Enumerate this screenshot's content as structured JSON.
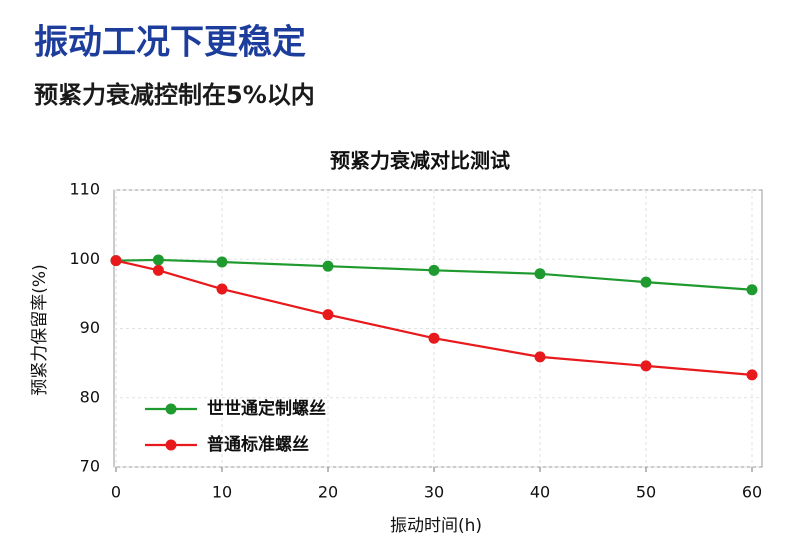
{
  "header": {
    "title": "振动工况下更稳定",
    "subtitle": "预紧力衰减控制在5%以内"
  },
  "chart_data": {
    "type": "line",
    "title": "预紧力衰减对比测试",
    "x_label": "振动时间(h)",
    "y_label": "预紧力保留率(%)",
    "x": [
      0,
      4,
      10,
      20,
      30,
      40,
      50,
      60
    ],
    "series": [
      {
        "name": "世世通定制螺丝",
        "color": "#1e9a2e",
        "values": [
          99.8,
          99.9,
          99.6,
          99.0,
          98.4,
          97.9,
          96.7,
          95.6
        ]
      },
      {
        "name": "普通标准螺丝",
        "color": "#e8191c",
        "values": [
          99.8,
          98.4,
          95.7,
          92.0,
          88.6,
          85.9,
          84.6,
          83.3
        ]
      }
    ],
    "xlim": [
      0,
      60
    ],
    "xticks": [
      0,
      10,
      20,
      30,
      40,
      50,
      60
    ],
    "ylim": [
      70,
      110
    ],
    "yticks": [
      70,
      80,
      90,
      100,
      110
    ],
    "grid": true,
    "legend": "lower left"
  }
}
